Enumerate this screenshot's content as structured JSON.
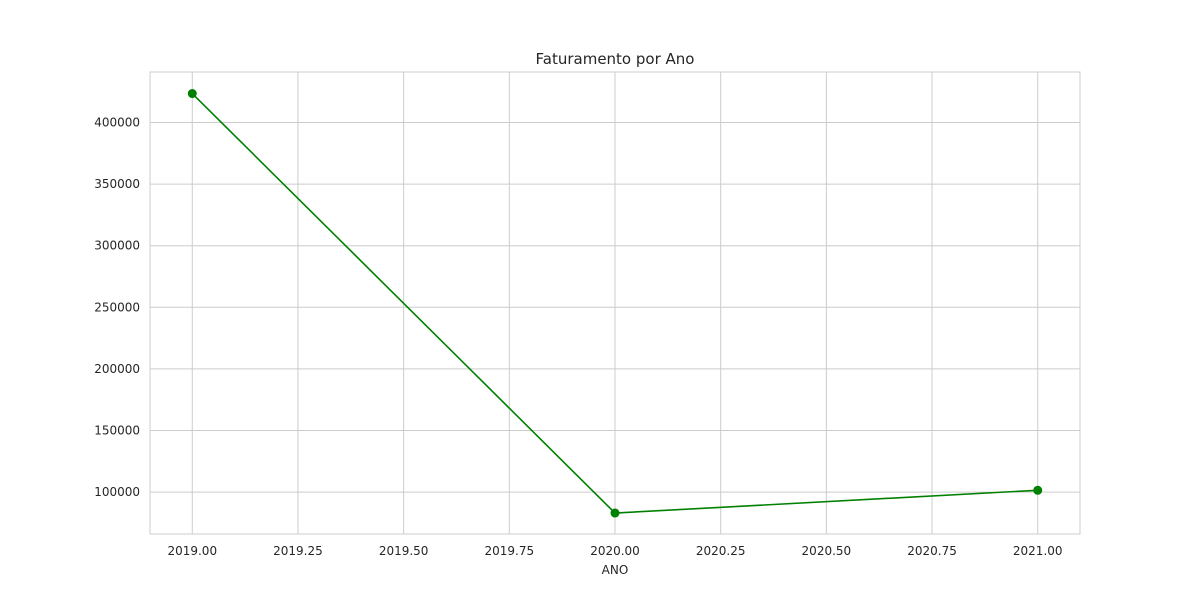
{
  "chart_data": {
    "type": "line",
    "title": "Faturamento por Ano",
    "xlabel": "ANO",
    "ylabel": "",
    "xlim": [
      2018.9,
      2021.1
    ],
    "ylim": [
      66000,
      441000
    ],
    "x_ticks": [
      2019.0,
      2019.25,
      2019.5,
      2019.75,
      2020.0,
      2020.25,
      2020.5,
      2020.75,
      2021.0
    ],
    "x_tick_labels": [
      "2019.00",
      "2019.25",
      "2019.50",
      "2019.75",
      "2020.00",
      "2020.25",
      "2020.50",
      "2020.75",
      "2021.00"
    ],
    "y_ticks": [
      100000,
      150000,
      200000,
      250000,
      300000,
      350000,
      400000
    ],
    "y_tick_labels": [
      "100000",
      "150000",
      "200000",
      "250000",
      "300000",
      "350000",
      "400000"
    ],
    "grid": true,
    "series": [
      {
        "color": "#008000",
        "marker": "circle",
        "x": [
          2019,
          2020,
          2021
        ],
        "y": [
          423500,
          83000,
          101500
        ]
      }
    ]
  }
}
